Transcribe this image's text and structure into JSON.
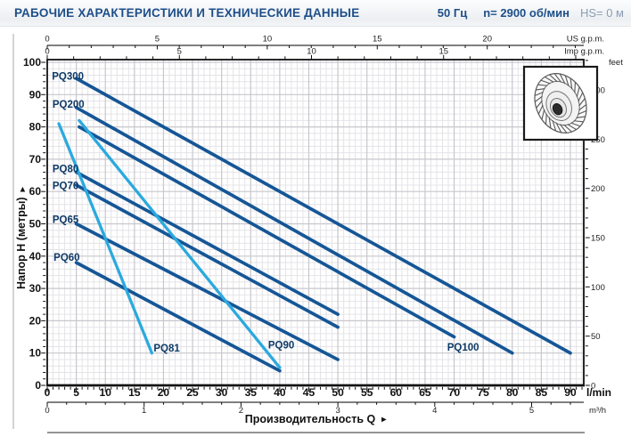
{
  "header": {
    "title": "РАБОЧИЕ ХАРАКТЕРИСТИКИ И ТЕХНИЧЕСКИЕ ДАННЫЕ",
    "frequency": "50 Гц",
    "speed": "n= 2900 об/мин",
    "suction": "HS= 0 м"
  },
  "chart_data": {
    "type": "line",
    "xlabel": "Производительность Q",
    "ylabel": "Напор H (метры)",
    "xlim": [
      0,
      92.3
    ],
    "ylim": [
      0,
      100.8
    ],
    "grid": "on",
    "axes": {
      "l_min": {
        "unit": "l/min",
        "ticks": [
          0,
          5,
          10,
          15,
          20,
          25,
          30,
          35,
          40,
          45,
          50,
          55,
          60,
          65,
          70,
          75,
          80,
          85,
          90
        ]
      },
      "m3_h": {
        "unit": "m³/h",
        "ticks": [
          0,
          1,
          2,
          3,
          4,
          5
        ]
      },
      "us_gpm": {
        "unit": "US g.p.m.",
        "ticks": [
          0,
          5,
          10,
          15,
          20
        ]
      },
      "imp_gpm": {
        "unit": "Imp g.p.m.",
        "ticks": [
          0,
          5,
          10,
          15
        ]
      },
      "head_m": {
        "unit": "",
        "ticks": [
          0,
          10,
          20,
          30,
          40,
          50,
          60,
          70,
          80,
          90,
          100
        ]
      },
      "feet": {
        "unit": "feet",
        "ticks": [
          0,
          50,
          100,
          150,
          200,
          250,
          300
        ]
      }
    },
    "series": [
      {
        "name": "PQ300",
        "color": "dark_curve",
        "points": [
          [
            5,
            95
          ],
          [
            90,
            10
          ]
        ],
        "label_at": [
          0.8,
          94.6
        ]
      },
      {
        "name": "PQ200",
        "color": "dark_curve",
        "points": [
          [
            5,
            86
          ],
          [
            80,
            10
          ]
        ],
        "label_at": [
          0.9,
          86.0
        ]
      },
      {
        "name": "PQ100",
        "color": "dark_curve",
        "points": [
          [
            5.5,
            80
          ],
          [
            70,
            15
          ]
        ],
        "label_at": [
          68.8,
          10.8
        ]
      },
      {
        "name": "PQ80",
        "color": "dark_curve",
        "points": [
          [
            5,
            66
          ],
          [
            50,
            22
          ]
        ],
        "label_at": [
          0.9,
          66.0
        ]
      },
      {
        "name": "PQ70",
        "color": "dark_curve",
        "points": [
          [
            5,
            62
          ],
          [
            50,
            18
          ]
        ],
        "label_at": [
          0.9,
          60.8
        ]
      },
      {
        "name": "PQ65",
        "color": "dark_curve",
        "points": [
          [
            5,
            50
          ],
          [
            50,
            8
          ]
        ],
        "label_at": [
          0.9,
          50.3
        ]
      },
      {
        "name": "PQ60",
        "color": "dark_curve",
        "points": [
          [
            5,
            38
          ],
          [
            40,
            4.5
          ]
        ],
        "label_at": [
          1.1,
          38.5
        ]
      },
      {
        "name": "PQ81",
        "color": "light_curve",
        "points": [
          [
            2,
            81
          ],
          [
            18,
            10
          ]
        ],
        "label_at": [
          18.3,
          10.4
        ]
      },
      {
        "name": "PQ90",
        "color": "light_curve",
        "points": [
          [
            5.5,
            82
          ],
          [
            40,
            5.5
          ]
        ],
        "label_at": [
          38.0,
          11.5
        ]
      }
    ]
  },
  "colors": {
    "dark_curve": "#155696",
    "light_curve": "#2BA9DE",
    "curve_label": "#0E3A66",
    "header_navy": "#1D4E89",
    "suction_gray": "#8C9DB3"
  }
}
